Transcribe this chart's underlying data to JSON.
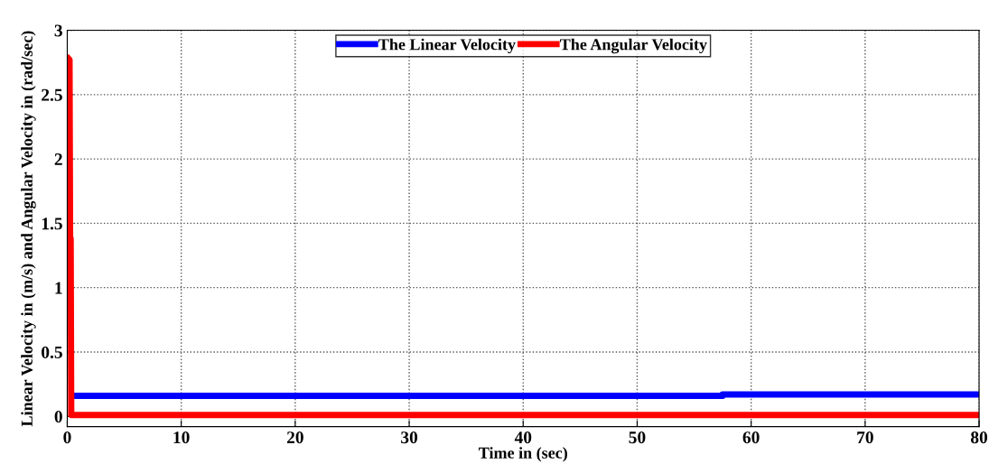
{
  "chart_data": {
    "type": "line",
    "xlabel": "Time in (sec)",
    "ylabel": "Linear Velocity in (m/s) and Angular Velocity in (rad/sec)",
    "xlim": [
      0,
      80
    ],
    "xticks": [
      0,
      10,
      20,
      30,
      40,
      50,
      60,
      70,
      80
    ],
    "ylim": [
      -0.08,
      3
    ],
    "yticks": [
      0,
      0.5,
      1,
      1.5,
      2,
      2.5,
      3
    ],
    "grid": true,
    "legend": "top",
    "line_style": "solid",
    "series": [
      {
        "name": "The Linear Velocity",
        "color": "#0000ff",
        "x": [
          0.4,
          57.5,
          57.5,
          80
        ],
        "values": [
          0.16,
          0.16,
          0.17,
          0.17
        ]
      },
      {
        "name": "The Angular Velocity",
        "color": "#ff0000",
        "x": [
          0.1,
          0.2,
          0.25,
          0.3,
          0.35,
          0.4,
          80
        ],
        "values": [
          2.78,
          2.77,
          1.38,
          1.38,
          0.01,
          0.01,
          0.01
        ]
      }
    ]
  }
}
